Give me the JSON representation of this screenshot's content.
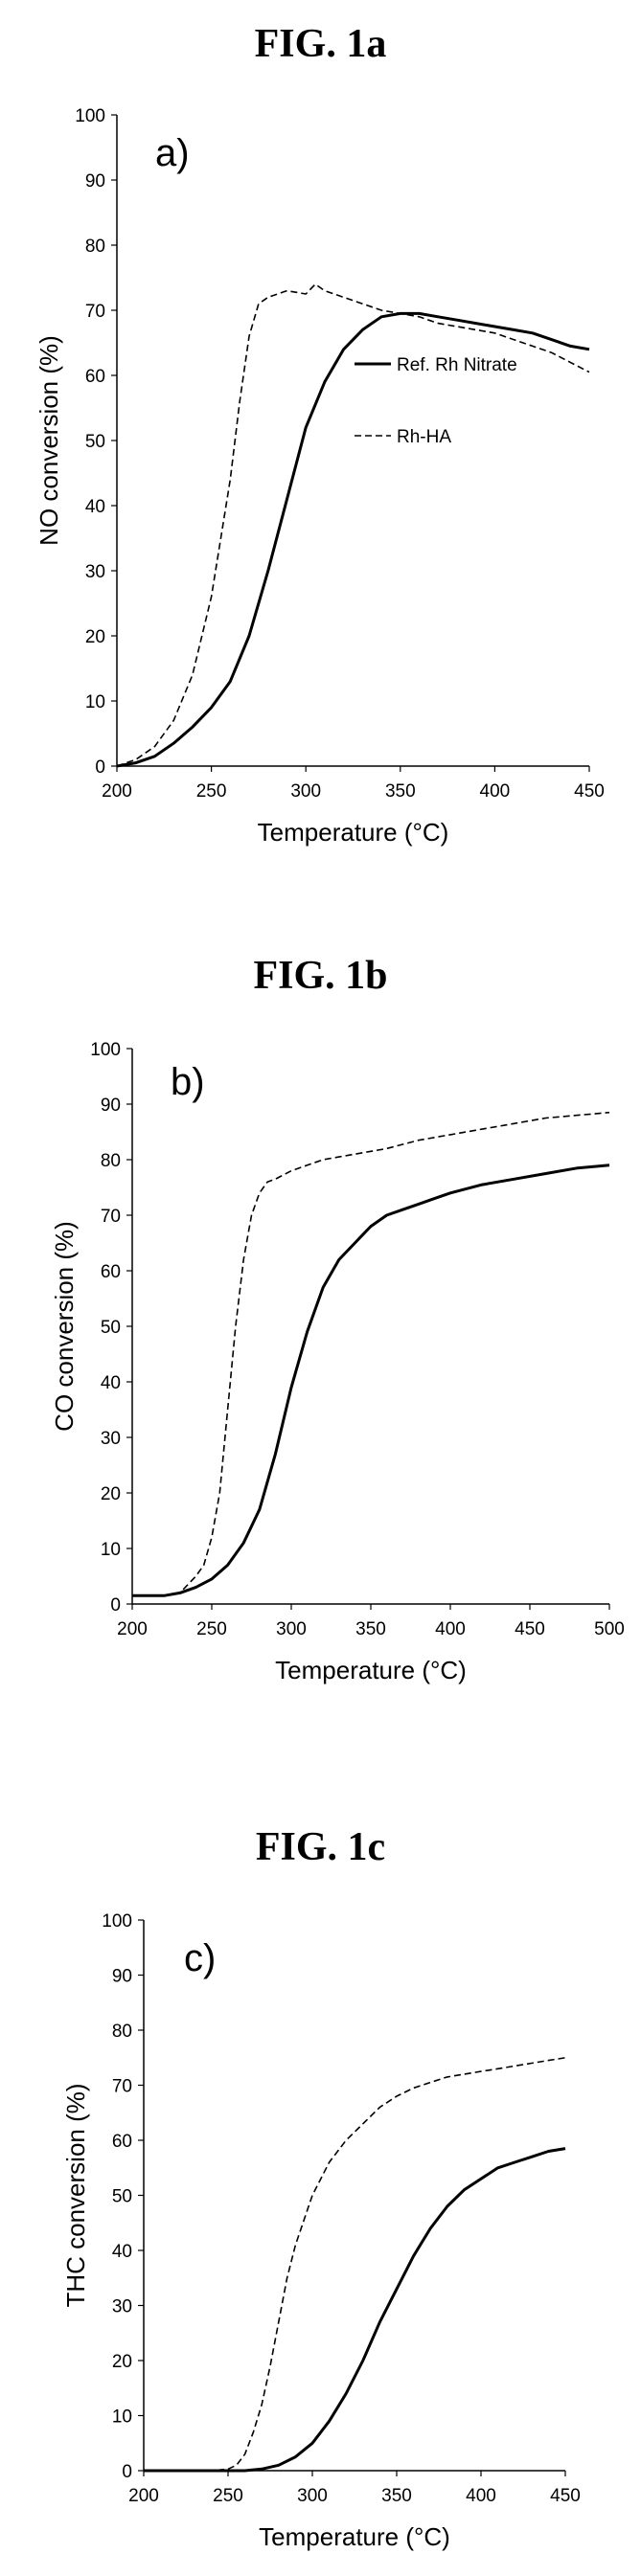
{
  "figures": [
    {
      "title": "FIG. 1a"
    },
    {
      "title": "FIG. 1b"
    },
    {
      "title": "FIG. 1c"
    }
  ],
  "chart_data": [
    {
      "type": "line",
      "panel_label": "a)",
      "xlabel": "Temperature (°C)",
      "ylabel": "NO conversion (%)",
      "xlim": [
        200,
        450
      ],
      "ylim": [
        0,
        100
      ],
      "xticks": [
        200,
        250,
        300,
        350,
        400,
        450
      ],
      "yticks": [
        0,
        10,
        20,
        30,
        40,
        50,
        60,
        70,
        80,
        90,
        100
      ],
      "legend": "right",
      "series": [
        {
          "name": "Ref. Rh Nitrate",
          "style": "solid",
          "x": [
            200,
            210,
            220,
            230,
            240,
            250,
            260,
            270,
            280,
            290,
            300,
            310,
            320,
            330,
            340,
            350,
            360,
            370,
            380,
            390,
            400,
            410,
            420,
            430,
            440,
            450
          ],
          "values": [
            0,
            0.5,
            1.5,
            3.5,
            6,
            9,
            13,
            20,
            30,
            41,
            52,
            59,
            64,
            67,
            69,
            69.5,
            69.5,
            69,
            68.5,
            68,
            67.5,
            67,
            66.5,
            65.5,
            64.5,
            64
          ]
        },
        {
          "name": "Rh-HA",
          "style": "dashed",
          "x": [
            200,
            210,
            220,
            230,
            240,
            250,
            260,
            265,
            270,
            275,
            280,
            290,
            300,
            305,
            310,
            320,
            330,
            340,
            350,
            360,
            370,
            380,
            390,
            400,
            410,
            420,
            430,
            440,
            450
          ],
          "values": [
            0,
            1,
            3,
            7,
            14,
            26,
            44,
            56,
            66,
            71,
            72,
            73,
            72.5,
            74,
            73,
            72,
            71,
            70,
            69.5,
            69,
            68,
            67.5,
            67,
            66.5,
            65.5,
            64.5,
            63.5,
            62,
            60.5
          ]
        }
      ]
    },
    {
      "type": "line",
      "panel_label": "b)",
      "xlabel": "Temperature (°C)",
      "ylabel": "CO conversion (%)",
      "xlim": [
        200,
        500
      ],
      "ylim": [
        0,
        100
      ],
      "xticks": [
        200,
        250,
        300,
        350,
        400,
        450,
        500
      ],
      "yticks": [
        0,
        10,
        20,
        30,
        40,
        50,
        60,
        70,
        80,
        90,
        100
      ],
      "series": [
        {
          "name": "Ref. Rh Nitrate",
          "style": "solid",
          "x": [
            200,
            210,
            220,
            230,
            240,
            250,
            260,
            270,
            280,
            290,
            300,
            310,
            320,
            330,
            340,
            350,
            360,
            370,
            380,
            390,
            400,
            420,
            440,
            460,
            480,
            500
          ],
          "values": [
            1.5,
            1.5,
            1.5,
            2,
            3,
            4.5,
            7,
            11,
            17,
            27,
            39,
            49,
            57,
            62,
            65,
            68,
            70,
            71,
            72,
            73,
            74,
            75.5,
            76.5,
            77.5,
            78.5,
            79
          ]
        },
        {
          "name": "Rh-HA",
          "style": "dashed",
          "x": [
            200,
            210,
            220,
            230,
            240,
            245,
            250,
            255,
            260,
            265,
            270,
            275,
            280,
            285,
            290,
            300,
            310,
            320,
            330,
            340,
            350,
            360,
            380,
            400,
            420,
            440,
            460,
            480,
            500
          ],
          "values": [
            1.5,
            1.5,
            1.5,
            2,
            5,
            7,
            12,
            20,
            35,
            50,
            62,
            70,
            74,
            76,
            76.5,
            78,
            79,
            80,
            80.5,
            81,
            81.5,
            82,
            83.5,
            84.5,
            85.5,
            86.5,
            87.5,
            88,
            88.5
          ]
        }
      ]
    },
    {
      "type": "line",
      "panel_label": "c)",
      "xlabel": "Temperature (°C)",
      "ylabel": "THC conversion (%)",
      "xlim": [
        200,
        450
      ],
      "ylim": [
        0,
        100
      ],
      "xticks": [
        200,
        250,
        300,
        350,
        400,
        450
      ],
      "yticks": [
        0,
        10,
        20,
        30,
        40,
        50,
        60,
        70,
        80,
        90,
        100
      ],
      "series": [
        {
          "name": "Ref. Rh Nitrate",
          "style": "solid",
          "x": [
            200,
            240,
            260,
            270,
            280,
            290,
            300,
            310,
            320,
            330,
            340,
            350,
            360,
            370,
            380,
            390,
            400,
            410,
            420,
            430,
            440,
            450
          ],
          "values": [
            0,
            0,
            0,
            0.3,
            1,
            2.5,
            5,
            9,
            14,
            20,
            27,
            33,
            39,
            44,
            48,
            51,
            53,
            55,
            56,
            57,
            58,
            58.5
          ]
        },
        {
          "name": "Rh-HA",
          "style": "dashed",
          "x": [
            200,
            240,
            250,
            255,
            260,
            265,
            270,
            275,
            280,
            285,
            290,
            300,
            310,
            320,
            330,
            340,
            350,
            360,
            370,
            380,
            390,
            400,
            410,
            420,
            430,
            440,
            450
          ],
          "values": [
            0,
            0,
            0.3,
            1,
            3,
            7,
            12,
            19,
            27,
            35,
            41,
            50,
            56,
            60,
            63,
            66,
            68,
            69.5,
            70.5,
            71.5,
            72,
            72.5,
            73,
            73.5,
            74,
            74.5,
            75
          ]
        }
      ]
    }
  ]
}
